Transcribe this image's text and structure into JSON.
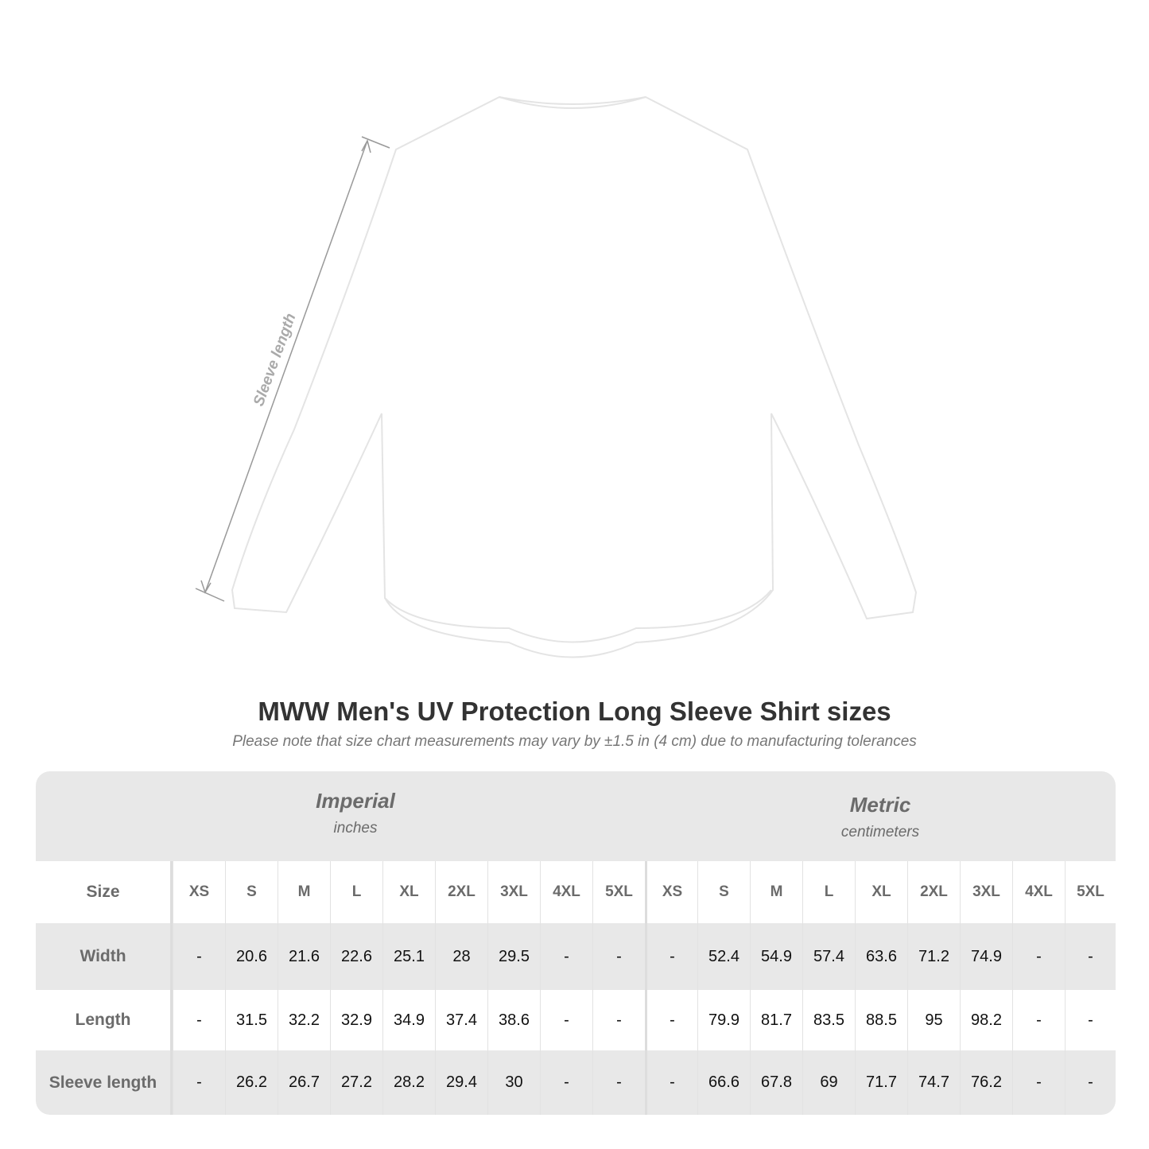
{
  "illustration": {
    "measure_label": "Sleeve length"
  },
  "title": "MWW Men's UV Protection Long Sleeve Shirt sizes",
  "subtitle": "Please note that size chart measurements may vary by ±1.5 in (4 cm) due to manufacturing tolerances",
  "imperial": {
    "name": "Imperial",
    "unit": "inches"
  },
  "metric": {
    "name": "Metric",
    "unit": "centimeters"
  },
  "sizes": [
    "XS",
    "S",
    "M",
    "L",
    "XL",
    "2XL",
    "3XL",
    "4XL",
    "5XL"
  ],
  "size_label": "Size",
  "rows": [
    {
      "label": "Width",
      "imperial": [
        "-",
        "20.6",
        "21.6",
        "22.6",
        "25.1",
        "28",
        "29.5",
        "-",
        "-"
      ],
      "metric": [
        "-",
        "52.4",
        "54.9",
        "57.4",
        "63.6",
        "71.2",
        "74.9",
        "-",
        "-"
      ]
    },
    {
      "label": "Length",
      "imperial": [
        "-",
        "31.5",
        "32.2",
        "32.9",
        "34.9",
        "37.4",
        "38.6",
        "-",
        "-"
      ],
      "metric": [
        "-",
        "79.9",
        "81.7",
        "83.5",
        "88.5",
        "95",
        "98.2",
        "-",
        "-"
      ]
    },
    {
      "label": "Sleeve length",
      "imperial": [
        "-",
        "26.2",
        "26.7",
        "27.2",
        "28.2",
        "29.4",
        "30",
        "-",
        "-"
      ],
      "metric": [
        "-",
        "66.6",
        "67.8",
        "69",
        "71.7",
        "74.7",
        "76.2",
        "-",
        "-"
      ]
    }
  ]
}
